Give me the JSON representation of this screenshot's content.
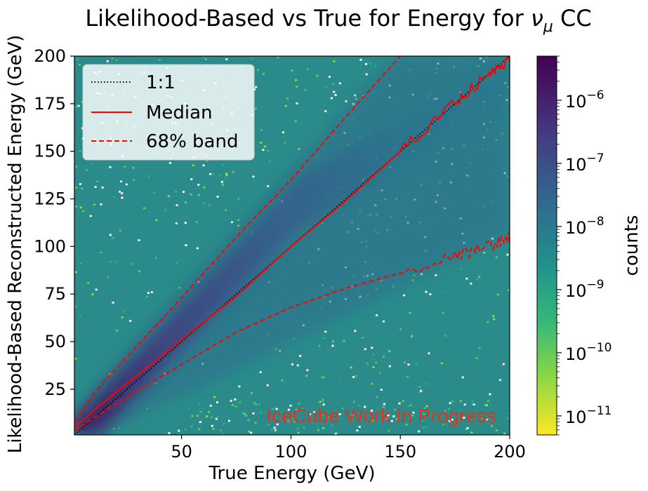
{
  "chart_data": {
    "type": "heatmap",
    "title": "Likelihood-Based vs True for Energy  for ",
    "title_symbol": "ν",
    "title_sub": "μ",
    "title_suffix": " CC",
    "xlabel": "True Energy (GeV)",
    "ylabel": "Likelihood-Based Reconstructed Energy (GeV)",
    "xlim": [
      1,
      200
    ],
    "ylim": [
      1,
      200
    ],
    "xticks": [
      50,
      100,
      150,
      200
    ],
    "yticks": [
      25,
      50,
      75,
      100,
      125,
      150,
      175,
      200
    ],
    "colorbar": {
      "label": "counts",
      "scale": "log",
      "range": [
        5e-12,
        5e-06
      ],
      "ticks": [
        "10",
        "10",
        "10",
        "10",
        "10",
        "10"
      ],
      "tick_exponents": [
        "−6",
        "−7",
        "−8",
        "−9",
        "−10",
        "−11"
      ],
      "tick_values": [
        1e-06,
        1e-07,
        1e-08,
        1e-09,
        1e-10,
        1e-11
      ],
      "colormap": "viridis_r"
    },
    "series": [
      {
        "name": "1:1",
        "style": "dotted",
        "color": "#000000",
        "x": [
          1,
          200
        ],
        "y": [
          1,
          200
        ]
      },
      {
        "name": "Median",
        "style": "solid",
        "color": "#ff0000",
        "x": [
          1,
          10,
          25,
          50,
          75,
          100,
          125,
          150,
          175,
          190,
          200
        ],
        "y": [
          5,
          14,
          28,
          51,
          74,
          100,
          124,
          150,
          176,
          190,
          198
        ]
      },
      {
        "name": "68% band",
        "style": "dashed",
        "color": "#ff0000",
        "x": [
          1,
          10,
          25,
          50,
          75,
          100,
          125,
          150
        ],
        "y": [
          8,
          23,
          42,
          73,
          105,
          135,
          168,
          200
        ]
      },
      {
        "name": "",
        "style": "dashed",
        "color": "#ff0000",
        "x": [
          1,
          10,
          25,
          50,
          75,
          100,
          125,
          150,
          175,
          190,
          200
        ],
        "y": [
          3,
          10,
          21,
          38,
          55,
          68,
          78,
          86,
          95,
          100,
          105
        ]
      }
    ],
    "legend": {
      "placement": "top-left",
      "entries": [
        "1:1",
        "Median",
        "68% band"
      ]
    },
    "annotation": {
      "text": "IceCube Work In Progress",
      "color": "#e8301a"
    }
  }
}
